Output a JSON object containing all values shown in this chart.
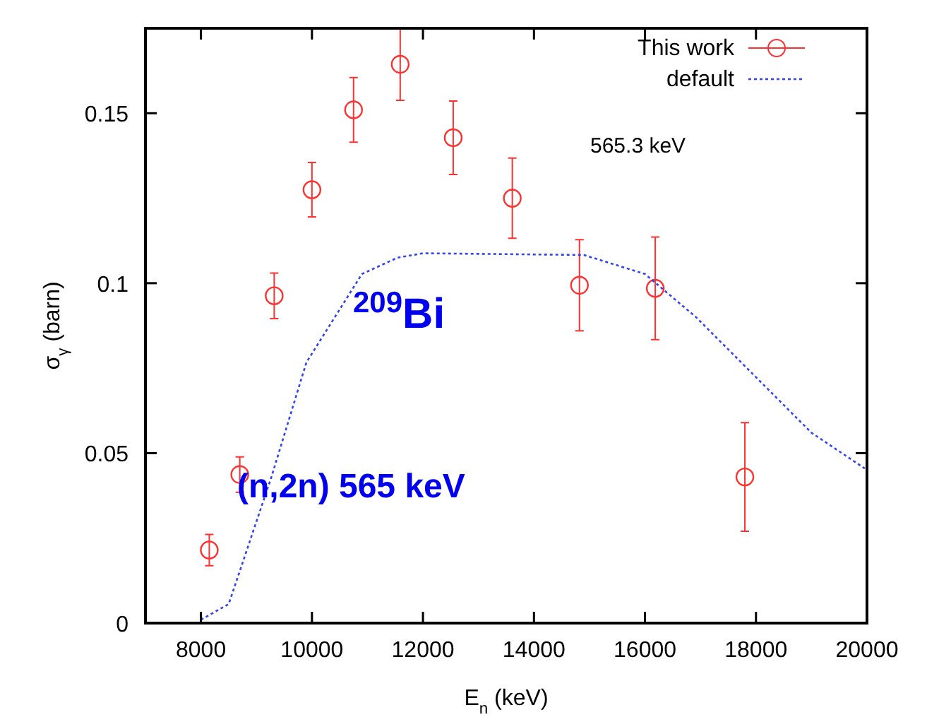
{
  "chart_data": {
    "type": "scatter",
    "xlabel": "E$_{n}$ (keV)",
    "ylabel": "σ$_{γ}$ (barn)",
    "xlim": [
      7000,
      20000
    ],
    "xticks": [
      8000,
      10000,
      12000,
      14000,
      16000,
      18000,
      20000
    ],
    "ylim": [
      0,
      0.175
    ],
    "yticks": [
      0,
      0.05,
      {
        "value": 0.1,
        "label": "0.1"
      },
      0.15
    ],
    "grid": false,
    "legend": "top right",
    "annotations": [
      "565.3 keV",
      "$^{209}$Bi",
      "(n,2n) 565 keV"
    ],
    "series": [
      {
        "name": "This work",
        "color": "#ff3030",
        "marker": "circle",
        "x": [
          8150,
          8700,
          9320,
          10000,
          10750,
          11590,
          12545,
          13610,
          14820,
          16185,
          17800
        ],
        "values": [
          0.0215,
          0.0437,
          0.0963,
          0.1275,
          0.151,
          0.1644,
          0.1428,
          0.125,
          0.0994,
          0.0985,
          0.043
        ],
        "errors": [
          0.0046,
          0.0052,
          0.0067,
          0.008,
          0.0095,
          0.0106,
          0.0108,
          0.0118,
          0.0134,
          0.0151,
          0.016
        ]
      },
      {
        "name": "default",
        "type": "line",
        "color": "#3344ee",
        "line_style": "dotted",
        "x": [
          8000,
          8500,
          9270,
          9900,
          10900,
          11540,
          12000,
          14900,
          16000,
          16920,
          19000,
          19960
        ],
        "values": [
          0.001,
          0.0056,
          0.043,
          0.0767,
          0.1027,
          0.1075,
          0.1088,
          0.1083,
          0.1027,
          0.09,
          0.056,
          0.0455
        ]
      }
    ]
  }
}
